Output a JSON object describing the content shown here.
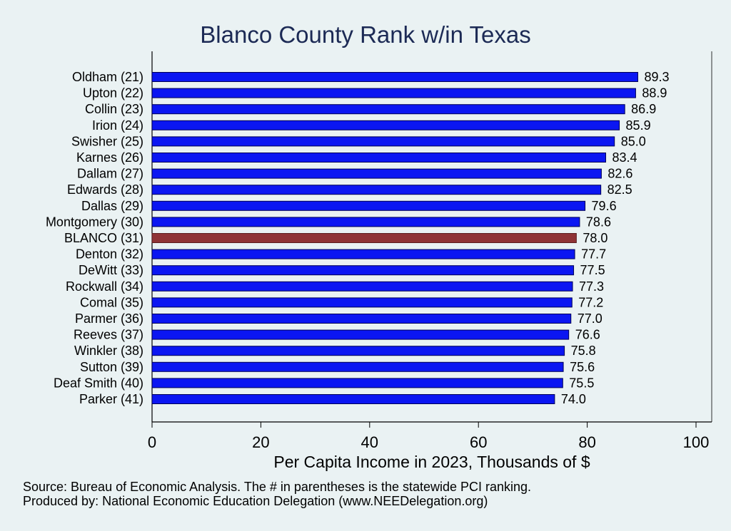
{
  "chart_data": {
    "type": "bar",
    "orientation": "horizontal",
    "title": "Blanco County Rank w/in Texas",
    "xlabel": "Per Capita Income in 2023, Thousands of $",
    "ylabel": "",
    "xlim": [
      0,
      100
    ],
    "xticks": [
      "0",
      "20",
      "40",
      "60",
      "80",
      "100"
    ],
    "grid": false,
    "categories": [
      "Oldham (21)",
      "Upton (22)",
      "Collin (23)",
      "Irion (24)",
      "Swisher (25)",
      "Karnes (26)",
      "Dallam (27)",
      "Edwards (28)",
      "Dallas (29)",
      "Montgomery (30)",
      "BLANCO (31)",
      "Denton (32)",
      "DeWitt (33)",
      "Rockwall (34)",
      "Comal (35)",
      "Parmer (36)",
      "Reeves (37)",
      "Winkler (38)",
      "Sutton (39)",
      "Deaf Smith (40)",
      "Parker (41)"
    ],
    "values": [
      89.3,
      88.9,
      86.9,
      85.9,
      85.0,
      83.4,
      82.6,
      82.5,
      79.6,
      78.6,
      78.0,
      77.7,
      77.5,
      77.3,
      77.2,
      77.0,
      76.6,
      75.8,
      75.6,
      75.5,
      74.0
    ],
    "value_labels": [
      "89.3",
      "88.9",
      "86.9",
      "85.9",
      "85.0",
      "83.4",
      "82.6",
      "82.5",
      "79.6",
      "78.6",
      "78.0",
      "77.7",
      "77.5",
      "77.3",
      "77.2",
      "77.0",
      "76.6",
      "75.8",
      "75.6",
      "75.5",
      "74.0"
    ],
    "highlight_index": 10,
    "bar_color": "#0b16f2",
    "highlight_color": "#8f3335",
    "background_color": "#eaf2f3"
  },
  "footnotes": {
    "source": "Source: Bureau of Economic Analysis. The # in parentheses is the statewide PCI ranking.",
    "produced_by": "Produced by: National Economic Education Delegation (www.NEEDelegation.org)"
  }
}
